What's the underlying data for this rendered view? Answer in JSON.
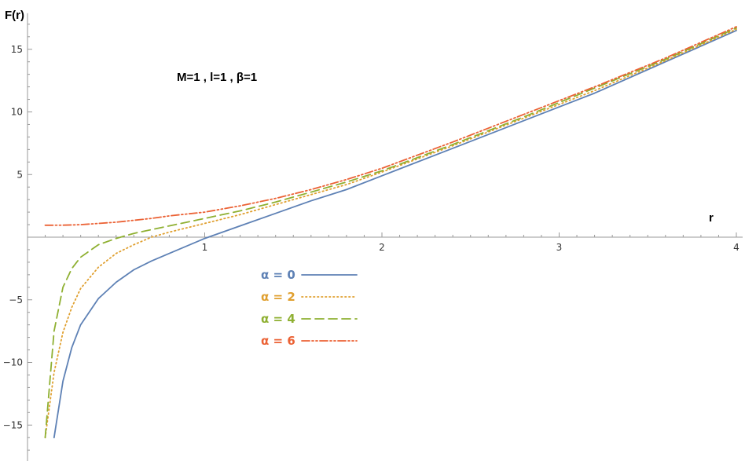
{
  "chart_data": {
    "type": "line",
    "title": "",
    "xlabel": "r",
    "ylabel": "F(r)",
    "annotation": "M=1 , l=1 , β=1",
    "xlim": [
      0,
      4
    ],
    "ylim": [
      -17,
      17
    ],
    "xticks": [
      1,
      2,
      3,
      4
    ],
    "yticks": [
      -15,
      -10,
      -5,
      5,
      10,
      15
    ],
    "x": [
      0.1,
      0.15,
      0.2,
      0.25,
      0.3,
      0.4,
      0.5,
      0.6,
      0.7,
      0.8,
      1.0,
      1.2,
      1.4,
      1.6,
      1.8,
      2.0,
      2.4,
      2.8,
      3.2,
      3.6,
      4.0
    ],
    "series": [
      {
        "name": "α = 0",
        "color": "#5e81b5",
        "dash": "solid",
        "values": [
          null,
          -16.0,
          -11.5,
          -8.8,
          -7.0,
          -4.9,
          -3.6,
          -2.6,
          -1.9,
          -1.3,
          -0.1,
          0.9,
          1.9,
          2.9,
          3.8,
          4.9,
          7.1,
          9.3,
          11.5,
          14.0,
          16.5
        ]
      },
      {
        "name": "α = 2",
        "color": "#e0a030",
        "dash": "dotted",
        "values": [
          -16.0,
          -10.8,
          -7.6,
          -5.6,
          -4.1,
          -2.4,
          -1.3,
          -0.6,
          0.0,
          0.4,
          1.1,
          1.8,
          2.6,
          3.4,
          4.2,
          5.2,
          7.3,
          9.5,
          11.7,
          14.1,
          16.6
        ]
      },
      {
        "name": "α = 4",
        "color": "#8fb032",
        "dash": "dashed",
        "values": [
          -16.0,
          -7.5,
          -4.0,
          -2.5,
          -1.6,
          -0.6,
          -0.1,
          0.3,
          0.6,
          0.9,
          1.5,
          2.1,
          2.8,
          3.6,
          4.4,
          5.3,
          7.4,
          9.6,
          11.9,
          14.2,
          16.7
        ]
      },
      {
        "name": "α = 6",
        "color": "#eb6235",
        "dash": "dashdotdot",
        "values": [
          0.95,
          0.95,
          0.96,
          0.98,
          1.0,
          1.1,
          1.2,
          1.35,
          1.5,
          1.7,
          2.0,
          2.5,
          3.1,
          3.8,
          4.6,
          5.5,
          7.6,
          9.8,
          12.0,
          14.3,
          16.8
        ]
      }
    ],
    "grid": false,
    "legend_position": "center-left"
  }
}
